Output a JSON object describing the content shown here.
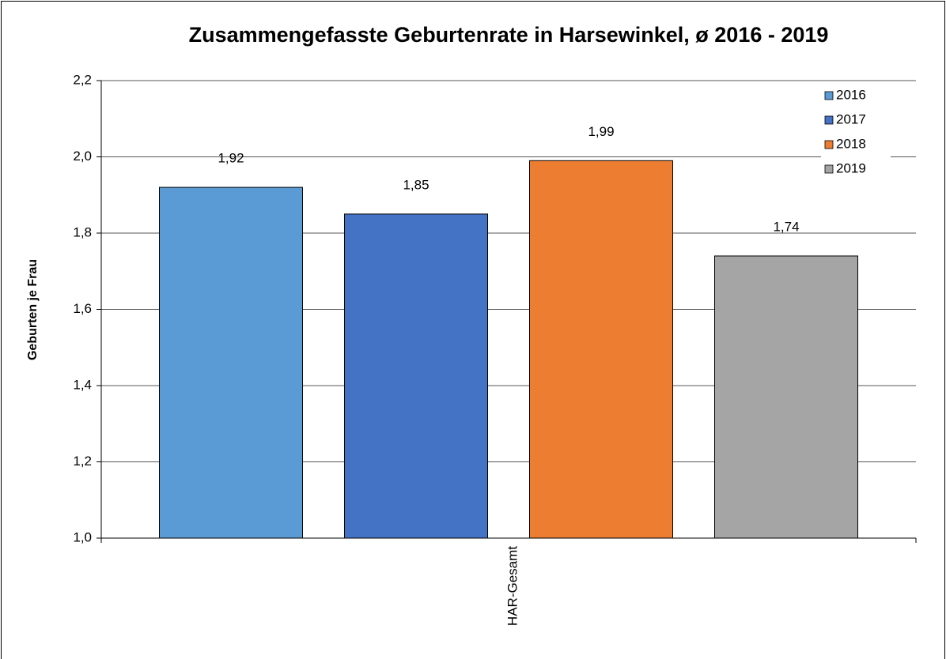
{
  "chart_data": {
    "type": "bar",
    "title": "Zusammengefasste Geburtenrate in Harsewinkel, ø 2016 - 2019",
    "y_label": "Geburten je Frau",
    "categories": [
      "HAR-Gesamt"
    ],
    "series": [
      {
        "name": "2016",
        "color": "#5b9bd5",
        "values": [
          1.92
        ],
        "value_labels": [
          "1,92"
        ]
      },
      {
        "name": "2017",
        "color": "#4472c4",
        "values": [
          1.85
        ],
        "value_labels": [
          "1,85"
        ]
      },
      {
        "name": "2018",
        "color": "#ed7d31",
        "values": [
          1.99
        ],
        "value_labels": [
          "1,99"
        ]
      },
      {
        "name": "2019",
        "color": "#a5a5a5",
        "values": [
          1.74
        ],
        "value_labels": [
          "1,74"
        ]
      }
    ],
    "ylim": [
      1.0,
      2.2
    ],
    "yticks": [
      {
        "value": 1.0,
        "label": "1,0"
      },
      {
        "value": 1.2,
        "label": "1,2"
      },
      {
        "value": 1.4,
        "label": "1,4"
      },
      {
        "value": 1.6,
        "label": "1,6"
      },
      {
        "value": 1.8,
        "label": "1,8"
      },
      {
        "value": 2.0,
        "label": "2,0"
      },
      {
        "value": 2.2,
        "label": "2,2"
      }
    ],
    "grid": true,
    "legend": "top-right"
  }
}
